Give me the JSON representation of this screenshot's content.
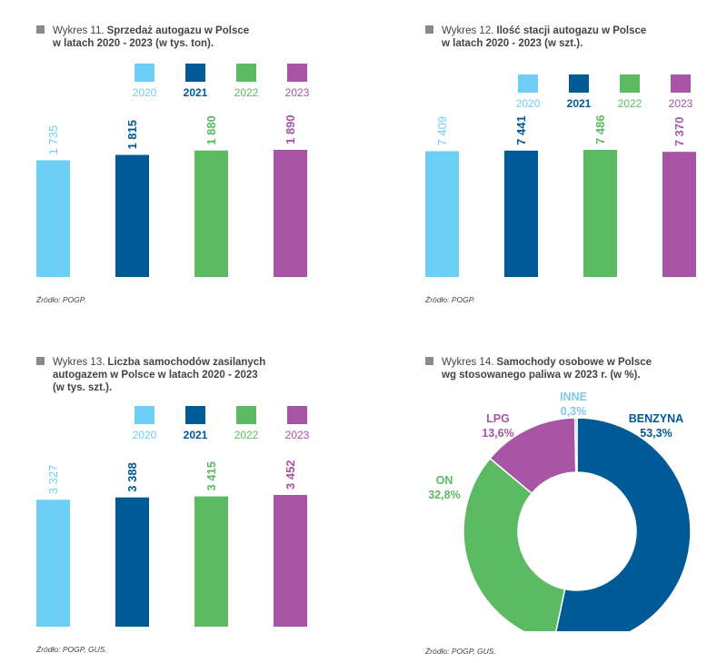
{
  "colors": {
    "2020": "#6dcff6",
    "2021": "#005a96",
    "2022": "#5cbb62",
    "2023": "#a855a5",
    "inne": "#7fc8e8"
  },
  "charts": [
    {
      "prefix": "Wykres 11.",
      "title_line1": "Sprzedaż autogazu w Polsce",
      "title_line2": "w latach 2020 - 2023 (w tys. ton).",
      "title_line3": "",
      "source": "Źródło: POGP."
    },
    {
      "prefix": "Wykres 12.",
      "title_line1": "Ilość stacji autogazu w Polsce",
      "title_line2": "w latach 2020 - 2023 (w szt.).",
      "title_line3": "",
      "source": "Źródło: POGP."
    },
    {
      "prefix": "Wykres 13.",
      "title_line1": "Liczba samochodów zasilanych",
      "title_line2": "autogazem w Polsce w latach 2020 - 2023",
      "title_line3": "(w tys. szt.).",
      "source": "Źródło: POGP, GUS."
    },
    {
      "prefix": "Wykres 14.",
      "title_line1": "Samochody osobowe w Polsce",
      "title_line2": "wg stosowanego paliwa w 2023 r. (w %).",
      "title_line3": "",
      "source": "Źródło: POGP, GUS."
    }
  ],
  "chart_data": [
    {
      "type": "bar",
      "categories": [
        "2020",
        "2021",
        "2022",
        "2023"
      ],
      "values": [
        1735,
        1815,
        1880,
        1890
      ],
      "labels": [
        "1 735",
        "1 815",
        "1 880",
        "1 890"
      ],
      "legend": [
        "2020",
        "2021",
        "2022",
        "2023"
      ],
      "legend_position": "top",
      "grid": false
    },
    {
      "type": "bar",
      "categories": [
        "2020",
        "2021",
        "2022",
        "2023"
      ],
      "values": [
        7409,
        7441,
        7486,
        7370
      ],
      "labels": [
        "7 409",
        "7 441",
        "7 486",
        "7 370"
      ],
      "legend": [
        "2020",
        "2021",
        "2022",
        "2023"
      ],
      "legend_position": "top",
      "grid": false
    },
    {
      "type": "bar",
      "categories": [
        "2020",
        "2021",
        "2022",
        "2023"
      ],
      "values": [
        3327,
        3388,
        3415,
        3452
      ],
      "labels": [
        "3 327",
        "3 388",
        "3 415",
        "3 452"
      ],
      "legend": [
        "2020",
        "2021",
        "2022",
        "2023"
      ],
      "legend_position": "top",
      "grid": false
    },
    {
      "type": "pie",
      "donut": true,
      "slices": [
        {
          "name": "BENZYNA",
          "value": 53.3,
          "label": "53,3%",
          "color": "#005a96"
        },
        {
          "name": "ON",
          "value": 32.8,
          "label": "32,8%",
          "color": "#5cbb62"
        },
        {
          "name": "LPG",
          "value": 13.6,
          "label": "13,6%",
          "color": "#a855a5"
        },
        {
          "name": "INNE",
          "value": 0.3,
          "label": "0,3%",
          "color": "#7fc8e8"
        }
      ]
    }
  ]
}
